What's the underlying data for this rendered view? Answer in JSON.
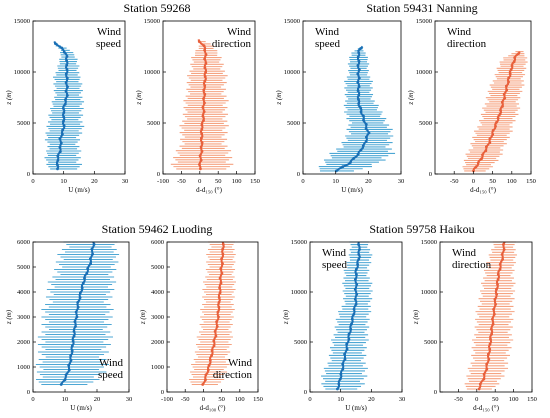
{
  "colors": {
    "speed": "#3a9ed0",
    "speed_dark": "#1a6fb5",
    "direction": "#f59a74",
    "direction_dark": "#e8603c"
  },
  "stations": [
    {
      "title": "Station 59268"
    },
    {
      "title": "Station 59431 Nanning"
    },
    {
      "title": "Station 59462 Luoding"
    },
    {
      "title": "Station 59758 Haikou"
    }
  ],
  "chart_data": [
    {
      "type": "line",
      "station": "Station 59268",
      "variable": "speed",
      "label_lines": [
        "Wind",
        "speed"
      ],
      "label_corner": "top-right",
      "xlabel": "U (m/s)",
      "ylabel": "z (m)",
      "xlim": [
        0,
        30
      ],
      "ylim": [
        0,
        15000
      ],
      "xticks": [
        0,
        10,
        20,
        30
      ],
      "yticks": [
        0,
        5000,
        10000,
        15000
      ],
      "profile": [
        [
          8,
          500
        ],
        [
          8,
          1500
        ],
        [
          9,
          2500
        ],
        [
          9,
          3500
        ],
        [
          10,
          4500
        ],
        [
          10,
          5500
        ],
        [
          10,
          6500
        ],
        [
          11,
          7500
        ],
        [
          11,
          8500
        ],
        [
          11,
          9500
        ],
        [
          11,
          10500
        ],
        [
          11,
          11500
        ],
        [
          10,
          12200
        ],
        [
          8,
          12600
        ],
        [
          7,
          13000
        ]
      ],
      "spread": [
        [
          3,
          8
        ],
        [
          4,
          7
        ],
        [
          4,
          6
        ],
        [
          5,
          6
        ],
        [
          5,
          6
        ],
        [
          5,
          6
        ],
        [
          4,
          6
        ],
        [
          4,
          5
        ],
        [
          4,
          5
        ],
        [
          4,
          4
        ],
        [
          3,
          4
        ],
        [
          2,
          3
        ],
        [
          1,
          2
        ],
        [
          1,
          1
        ],
        [
          0,
          0
        ]
      ]
    },
    {
      "type": "line",
      "station": "Station 59268",
      "variable": "direction",
      "label_lines": [
        "Wind",
        "direction"
      ],
      "label_corner": "top-right",
      "xlabel": "d-d₁₅₀ (°)",
      "ylabel": "z (m)",
      "xlim": [
        -100,
        150
      ],
      "ylim": [
        0,
        15000
      ],
      "xticks": [
        -100,
        -50,
        0,
        50,
        100,
        150
      ],
      "yticks": [
        0,
        5000,
        10000,
        15000
      ],
      "profile": [
        [
          0,
          500
        ],
        [
          2,
          1500
        ],
        [
          5,
          2500
        ],
        [
          5,
          3500
        ],
        [
          5,
          4500
        ],
        [
          10,
          5500
        ],
        [
          10,
          6500
        ],
        [
          12,
          7500
        ],
        [
          12,
          8500
        ],
        [
          15,
          9500
        ],
        [
          15,
          10500
        ],
        [
          15,
          11500
        ],
        [
          15,
          12300
        ],
        [
          5,
          12800
        ],
        [
          -5,
          13200
        ]
      ],
      "spread": [
        [
          80,
          90
        ],
        [
          70,
          80
        ],
        [
          60,
          70
        ],
        [
          55,
          65
        ],
        [
          55,
          65
        ],
        [
          55,
          65
        ],
        [
          50,
          60
        ],
        [
          50,
          60
        ],
        [
          45,
          55
        ],
        [
          45,
          55
        ],
        [
          40,
          50
        ],
        [
          35,
          40
        ],
        [
          20,
          25
        ],
        [
          5,
          30
        ],
        [
          0,
          0
        ]
      ]
    },
    {
      "type": "line",
      "station": "Station 59431 Nanning",
      "variable": "speed",
      "label_lines": [
        "Wind",
        "speed"
      ],
      "label_corner": "top-left",
      "xlabel": "U (m/s)",
      "ylabel": "z (m)",
      "xlim": [
        0,
        30
      ],
      "ylim": [
        0,
        15000
      ],
      "xticks": [
        0,
        10,
        20,
        30
      ],
      "yticks": [
        0,
        5000,
        10000,
        15000
      ],
      "profile": [
        [
          10,
          300
        ],
        [
          14,
          1000
        ],
        [
          17,
          2000
        ],
        [
          19,
          3000
        ],
        [
          20,
          4000
        ],
        [
          19,
          5000
        ],
        [
          18,
          6000
        ],
        [
          17,
          7000
        ],
        [
          17,
          8000
        ],
        [
          17,
          9000
        ],
        [
          17,
          10000
        ],
        [
          17,
          11000
        ],
        [
          17,
          12000
        ],
        [
          18,
          12500
        ]
      ],
      "spread": [
        [
          6,
          7
        ],
        [
          8,
          9
        ],
        [
          8,
          10
        ],
        [
          7,
          8
        ],
        [
          6,
          7
        ],
        [
          5,
          7
        ],
        [
          5,
          6
        ],
        [
          4,
          5
        ],
        [
          4,
          4
        ],
        [
          4,
          4
        ],
        [
          3,
          3
        ],
        [
          3,
          3
        ],
        [
          2,
          2
        ],
        [
          0,
          0
        ]
      ]
    },
    {
      "type": "line",
      "station": "Station 59431 Nanning",
      "variable": "direction",
      "label_lines": [
        "Wind",
        "direction"
      ],
      "label_corner": "top-left",
      "xlabel": "d-d₁₅₀ (°)",
      "ylabel": "z (m)",
      "xlim": [
        -100,
        150
      ],
      "ylim": [
        0,
        15000
      ],
      "xticks": [
        -50,
        0,
        50,
        100,
        150
      ],
      "yticks": [
        0,
        5000,
        10000,
        15000
      ],
      "profile": [
        [
          0,
          300
        ],
        [
          20,
          1500
        ],
        [
          40,
          3000
        ],
        [
          55,
          4500
        ],
        [
          70,
          6000
        ],
        [
          80,
          7500
        ],
        [
          90,
          9000
        ],
        [
          100,
          10500
        ],
        [
          110,
          11500
        ],
        [
          120,
          12000
        ]
      ],
      "spread": [
        [
          30,
          40
        ],
        [
          40,
          45
        ],
        [
          45,
          45
        ],
        [
          45,
          45
        ],
        [
          45,
          45
        ],
        [
          45,
          40
        ],
        [
          40,
          40
        ],
        [
          35,
          35
        ],
        [
          30,
          30
        ],
        [
          10,
          10
        ]
      ]
    },
    {
      "type": "line",
      "station": "Station 59462 Luoding",
      "variable": "speed",
      "label_lines": [
        "Wind",
        "speed"
      ],
      "label_corner": "bottom-right",
      "xlabel": "U (m/s)",
      "ylabel": "z (m)",
      "xlim": [
        0,
        30
      ],
      "ylim": [
        0,
        6000
      ],
      "xticks": [
        0,
        10,
        20,
        30
      ],
      "yticks": [
        0,
        1000,
        2000,
        3000,
        4000,
        5000,
        6000
      ],
      "profile": [
        [
          9,
          300
        ],
        [
          11,
          800
        ],
        [
          12,
          1500
        ],
        [
          13,
          2500
        ],
        [
          14,
          3500
        ],
        [
          16,
          4500
        ],
        [
          18,
          5200
        ],
        [
          19,
          6000
        ]
      ],
      "spread": [
        [
          8,
          10
        ],
        [
          9,
          11
        ],
        [
          10,
          11
        ],
        [
          10,
          11
        ],
        [
          10,
          10
        ],
        [
          10,
          9
        ],
        [
          10,
          8
        ],
        [
          9,
          7
        ]
      ]
    },
    {
      "type": "line",
      "station": "Station 59462 Luoding",
      "variable": "direction",
      "label_lines": [
        "Wind",
        "direction"
      ],
      "label_corner": "bottom-right",
      "xlabel": "d-d₁₀₀ (°)",
      "ylabel": "z (m)",
      "xlim": [
        -100,
        150
      ],
      "ylim": [
        0,
        6000
      ],
      "xticks": [
        -100,
        -50,
        0,
        50,
        100,
        150
      ],
      "yticks": [
        0,
        1000,
        2000,
        3000,
        4000,
        5000,
        6000
      ],
      "profile": [
        [
          0,
          300
        ],
        [
          15,
          1000
        ],
        [
          30,
          2000
        ],
        [
          40,
          3000
        ],
        [
          45,
          4000
        ],
        [
          50,
          5000
        ],
        [
          55,
          6000
        ]
      ],
      "spread": [
        [
          40,
          50
        ],
        [
          45,
          50
        ],
        [
          45,
          45
        ],
        [
          45,
          40
        ],
        [
          45,
          40
        ],
        [
          40,
          35
        ],
        [
          40,
          30
        ]
      ]
    },
    {
      "type": "line",
      "station": "Station 59758 Haikou",
      "variable": "speed",
      "label_lines": [
        "Wind",
        "speed"
      ],
      "label_corner": "top-left",
      "xlabel": "U (m/s)",
      "ylabel": "z (m)",
      "xlim": [
        0,
        30
      ],
      "ylim": [
        0,
        15000
      ],
      "xticks": [
        0,
        10,
        20,
        30
      ],
      "yticks": [
        0,
        5000,
        10000,
        15000
      ],
      "profile": [
        [
          9,
          300
        ],
        [
          10,
          1500
        ],
        [
          11,
          3000
        ],
        [
          12,
          4500
        ],
        [
          13,
          6000
        ],
        [
          14,
          7500
        ],
        [
          15,
          9000
        ],
        [
          15,
          10500
        ],
        [
          15,
          12000
        ],
        [
          16,
          13500
        ],
        [
          16,
          15000
        ]
      ],
      "spread": [
        [
          5,
          8
        ],
        [
          6,
          8
        ],
        [
          5,
          7
        ],
        [
          5,
          6
        ],
        [
          5,
          6
        ],
        [
          5,
          5
        ],
        [
          4,
          5
        ],
        [
          4,
          5
        ],
        [
          4,
          4
        ],
        [
          3,
          4
        ],
        [
          3,
          3
        ]
      ]
    },
    {
      "type": "line",
      "station": "Station 59758 Haikou",
      "variable": "direction",
      "label_lines": [
        "Wind",
        "direction"
      ],
      "label_corner": "top-left",
      "xlabel": "d-d₁₅₀ (°)",
      "ylabel": "z (m)",
      "xlim": [
        -100,
        150
      ],
      "ylim": [
        0,
        15000
      ],
      "xticks": [
        -50,
        0,
        50,
        100,
        150
      ],
      "yticks": [
        0,
        5000,
        10000,
        15000
      ],
      "profile": [
        [
          5,
          300
        ],
        [
          20,
          1500
        ],
        [
          30,
          3000
        ],
        [
          35,
          4500
        ],
        [
          40,
          6000
        ],
        [
          45,
          7500
        ],
        [
          50,
          9000
        ],
        [
          55,
          10500
        ],
        [
          60,
          12000
        ],
        [
          70,
          13500
        ],
        [
          75,
          15000
        ]
      ],
      "spread": [
        [
          40,
          45
        ],
        [
          45,
          50
        ],
        [
          45,
          55
        ],
        [
          45,
          55
        ],
        [
          45,
          55
        ],
        [
          45,
          50
        ],
        [
          45,
          50
        ],
        [
          40,
          45
        ],
        [
          40,
          40
        ],
        [
          35,
          35
        ],
        [
          30,
          30
        ]
      ]
    }
  ]
}
